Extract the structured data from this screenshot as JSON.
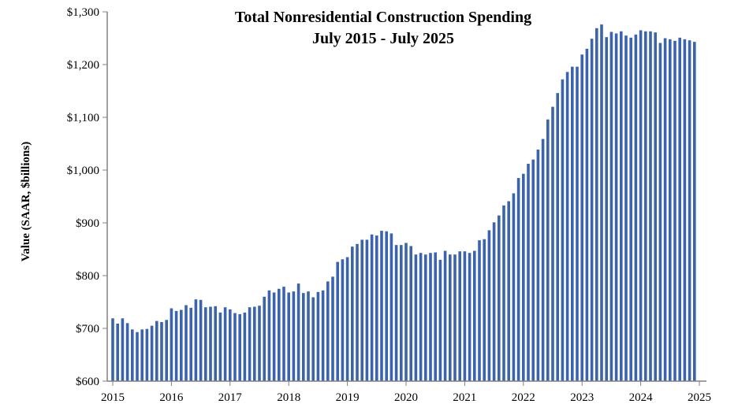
{
  "chart_data": {
    "type": "bar",
    "title": "Total Nonresidential Construction Spending",
    "subtitle": "July 2015 - July 2025",
    "xlabel": "",
    "ylabel": "Value (SAAR, $billions)",
    "ylim": [
      600,
      1300
    ],
    "yticks": [
      600,
      700,
      800,
      900,
      1000,
      1100,
      1200,
      1300
    ],
    "ytick_labels": [
      "$600",
      "$700",
      "$800",
      "$900",
      "$1,000",
      "$1,100",
      "$1,200",
      "$1,300"
    ],
    "xtick_labels": [
      "2015",
      "2016",
      "2017",
      "2018",
      "2019",
      "2020",
      "2021",
      "2022",
      "2023",
      "2024",
      "2025"
    ],
    "start": "2015-07",
    "end": "2025-07",
    "frequency": "monthly",
    "grid": false,
    "bar_color": "#3b64ad",
    "values": [
      719,
      709,
      719,
      710,
      698,
      693,
      698,
      699,
      705,
      714,
      712,
      716,
      738,
      733,
      735,
      744,
      739,
      755,
      754,
      740,
      741,
      742,
      730,
      740,
      736,
      729,
      727,
      730,
      740,
      741,
      743,
      760,
      772,
      768,
      775,
      779,
      768,
      770,
      785,
      767,
      770,
      759,
      769,
      772,
      789,
      798,
      826,
      831,
      835,
      855,
      860,
      868,
      868,
      878,
      876,
      885,
      884,
      880,
      858,
      858,
      862,
      856,
      840,
      843,
      840,
      843,
      844,
      830,
      847,
      840,
      840,
      846,
      846,
      843,
      847,
      867,
      869,
      886,
      901,
      914,
      933,
      941,
      956,
      985,
      993,
      1012,
      1020,
      1039,
      1059,
      1096,
      1120,
      1146,
      1172,
      1186,
      1196,
      1196,
      1219,
      1230,
      1249,
      1269,
      1276,
      1252,
      1262,
      1259,
      1263,
      1255,
      1251,
      1257,
      1265,
      1263,
      1263,
      1261,
      1241,
      1250,
      1248,
      1245,
      1251,
      1248,
      1246,
      1243
    ]
  }
}
